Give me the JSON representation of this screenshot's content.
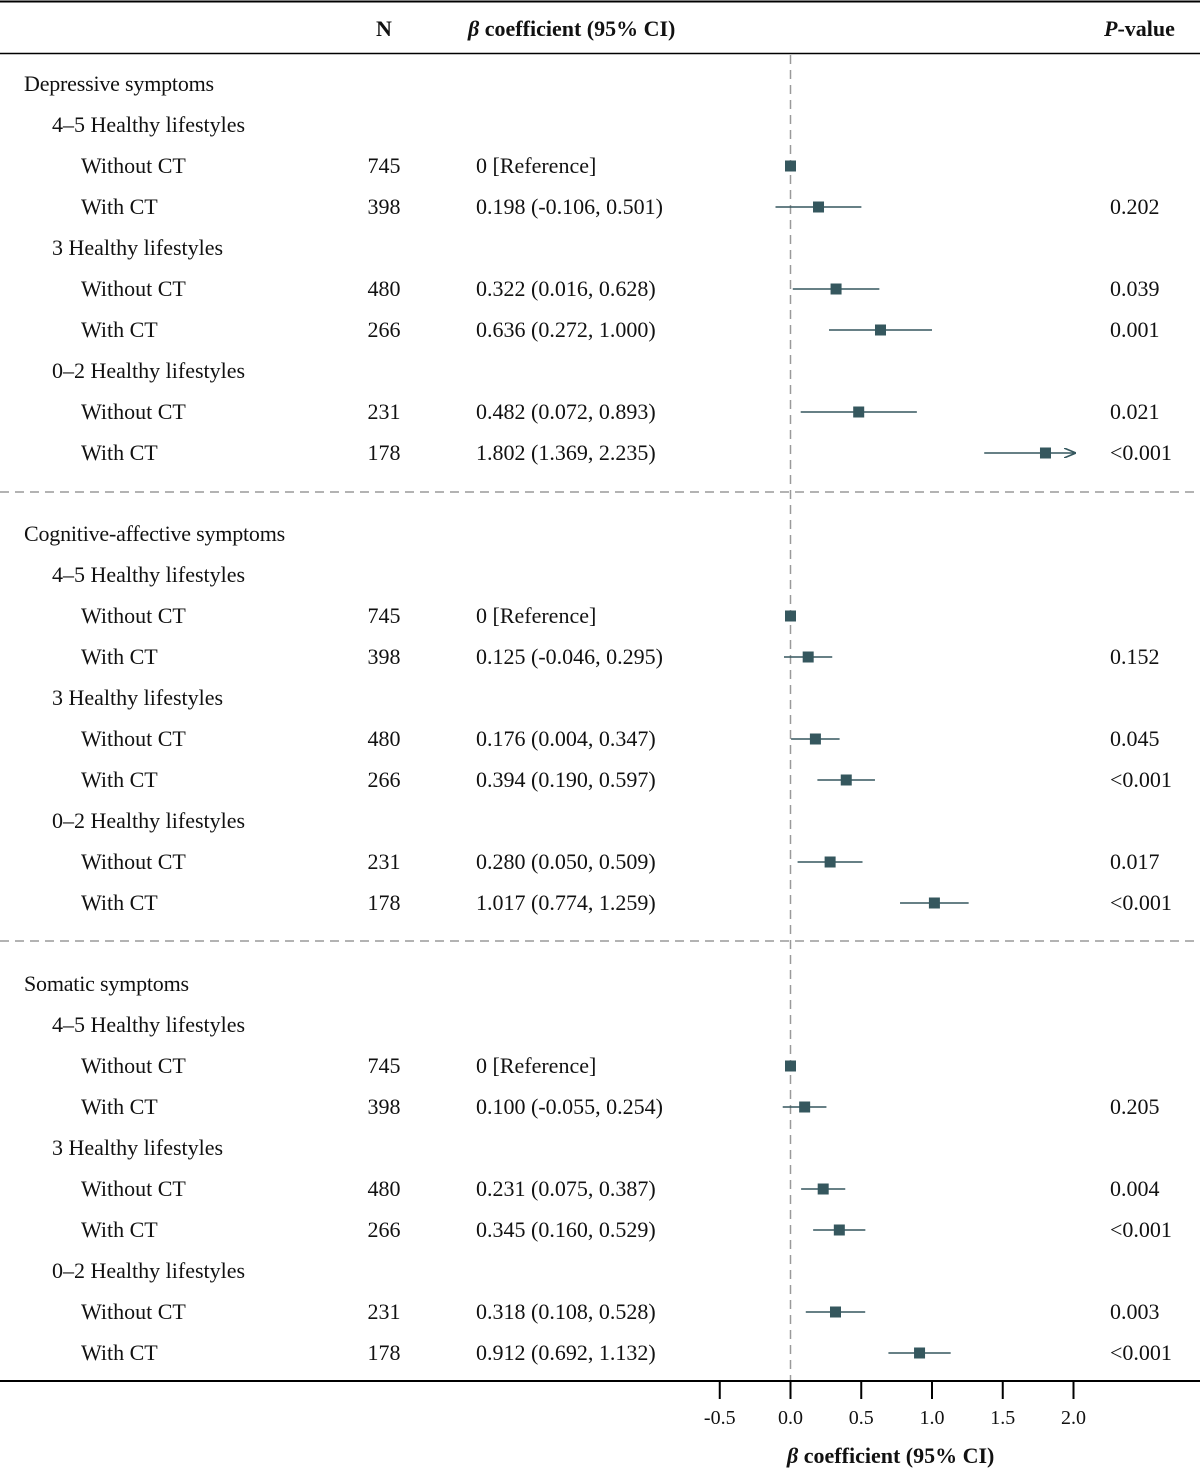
{
  "header": {
    "n_label": "N",
    "beta_label_symbol": "β",
    "beta_label_rest": " coefficient (95% CI)",
    "p_label_symbol": "P",
    "p_label_rest": "-value"
  },
  "colors": {
    "marker": "#35575e",
    "dashed": "#9a9a9a",
    "axis": "#000000"
  },
  "chart_data": {
    "type": "forest",
    "xlabel": "β coefficient (95% CI)",
    "xlim": [
      -0.5,
      2.0
    ],
    "xticks": [
      "-0.5",
      "0.0",
      "0.5",
      "1.0",
      "1.5",
      "2.0"
    ],
    "reference_line": 0,
    "sections": [
      {
        "title": "Depressive symptoms",
        "groups": [
          {
            "label": "4–5 Healthy lifestyles",
            "rows": [
              {
                "label": "Without CT",
                "n": "745",
                "ci_text": "0 [Reference]",
                "beta": 0,
                "lo": 0,
                "hi": 0,
                "p": ""
              },
              {
                "label": "With CT",
                "n": "398",
                "ci_text": "0.198 (-0.106, 0.501)",
                "beta": 0.198,
                "lo": -0.106,
                "hi": 0.501,
                "p": "0.202"
              }
            ]
          },
          {
            "label": "3 Healthy lifestyles",
            "rows": [
              {
                "label": "Without CT",
                "n": "480",
                "ci_text": "0.322 (0.016, 0.628)",
                "beta": 0.322,
                "lo": 0.016,
                "hi": 0.628,
                "p": "0.039"
              },
              {
                "label": "With CT",
                "n": "266",
                "ci_text": "0.636 (0.272, 1.000)",
                "beta": 0.636,
                "lo": 0.272,
                "hi": 1.0,
                "p": "0.001"
              }
            ]
          },
          {
            "label": "0–2 Healthy lifestyles",
            "rows": [
              {
                "label": "Without CT",
                "n": "231",
                "ci_text": "0.482 (0.072, 0.893)",
                "beta": 0.482,
                "lo": 0.072,
                "hi": 0.893,
                "p": "0.021"
              },
              {
                "label": "With CT",
                "n": "178",
                "ci_text": "1.802 (1.369, 2.235)",
                "beta": 1.802,
                "lo": 1.369,
                "hi": 2.235,
                "p": "<0.001"
              }
            ]
          }
        ]
      },
      {
        "title": "Cognitive-affective symptoms",
        "groups": [
          {
            "label": "4–5 Healthy lifestyles",
            "rows": [
              {
                "label": "Without CT",
                "n": "745",
                "ci_text": "0 [Reference]",
                "beta": 0,
                "lo": 0,
                "hi": 0,
                "p": ""
              },
              {
                "label": "With CT",
                "n": "398",
                "ci_text": "0.125 (-0.046, 0.295)",
                "beta": 0.125,
                "lo": -0.046,
                "hi": 0.295,
                "p": "0.152"
              }
            ]
          },
          {
            "label": "3 Healthy lifestyles",
            "rows": [
              {
                "label": "Without CT",
                "n": "480",
                "ci_text": "0.176 (0.004, 0.347)",
                "beta": 0.176,
                "lo": 0.004,
                "hi": 0.347,
                "p": "0.045"
              },
              {
                "label": "With CT",
                "n": "266",
                "ci_text": "0.394 (0.190, 0.597)",
                "beta": 0.394,
                "lo": 0.19,
                "hi": 0.597,
                "p": "<0.001"
              }
            ]
          },
          {
            "label": "0–2 Healthy lifestyles",
            "rows": [
              {
                "label": "Without CT",
                "n": "231",
                "ci_text": "0.280 (0.050, 0.509)",
                "beta": 0.28,
                "lo": 0.05,
                "hi": 0.509,
                "p": "0.017"
              },
              {
                "label": "With CT",
                "n": "178",
                "ci_text": "1.017 (0.774, 1.259)",
                "beta": 1.017,
                "lo": 0.774,
                "hi": 1.259,
                "p": "<0.001"
              }
            ]
          }
        ]
      },
      {
        "title": "Somatic symptoms",
        "groups": [
          {
            "label": "4–5 Healthy lifestyles",
            "rows": [
              {
                "label": "Without CT",
                "n": "745",
                "ci_text": "0 [Reference]",
                "beta": 0,
                "lo": 0,
                "hi": 0,
                "p": ""
              },
              {
                "label": "With CT",
                "n": "398",
                "ci_text": "0.100 (-0.055, 0.254)",
                "beta": 0.1,
                "lo": -0.055,
                "hi": 0.254,
                "p": "0.205"
              }
            ]
          },
          {
            "label": "3 Healthy lifestyles",
            "rows": [
              {
                "label": "Without CT",
                "n": "480",
                "ci_text": "0.231 (0.075, 0.387)",
                "beta": 0.231,
                "lo": 0.075,
                "hi": 0.387,
                "p": "0.004"
              },
              {
                "label": "With CT",
                "n": "266",
                "ci_text": "0.345 (0.160, 0.529)",
                "beta": 0.345,
                "lo": 0.16,
                "hi": 0.529,
                "p": "<0.001"
              }
            ]
          },
          {
            "label": "0–2 Healthy lifestyles",
            "rows": [
              {
                "label": "Without CT",
                "n": "231",
                "ci_text": "0.318 (0.108, 0.528)",
                "beta": 0.318,
                "lo": 0.108,
                "hi": 0.528,
                "p": "0.003"
              },
              {
                "label": "With CT",
                "n": "178",
                "ci_text": "0.912 (0.692, 1.132)",
                "beta": 0.912,
                "lo": 0.692,
                "hi": 1.132,
                "p": "<0.001"
              }
            ]
          }
        ]
      }
    ]
  }
}
